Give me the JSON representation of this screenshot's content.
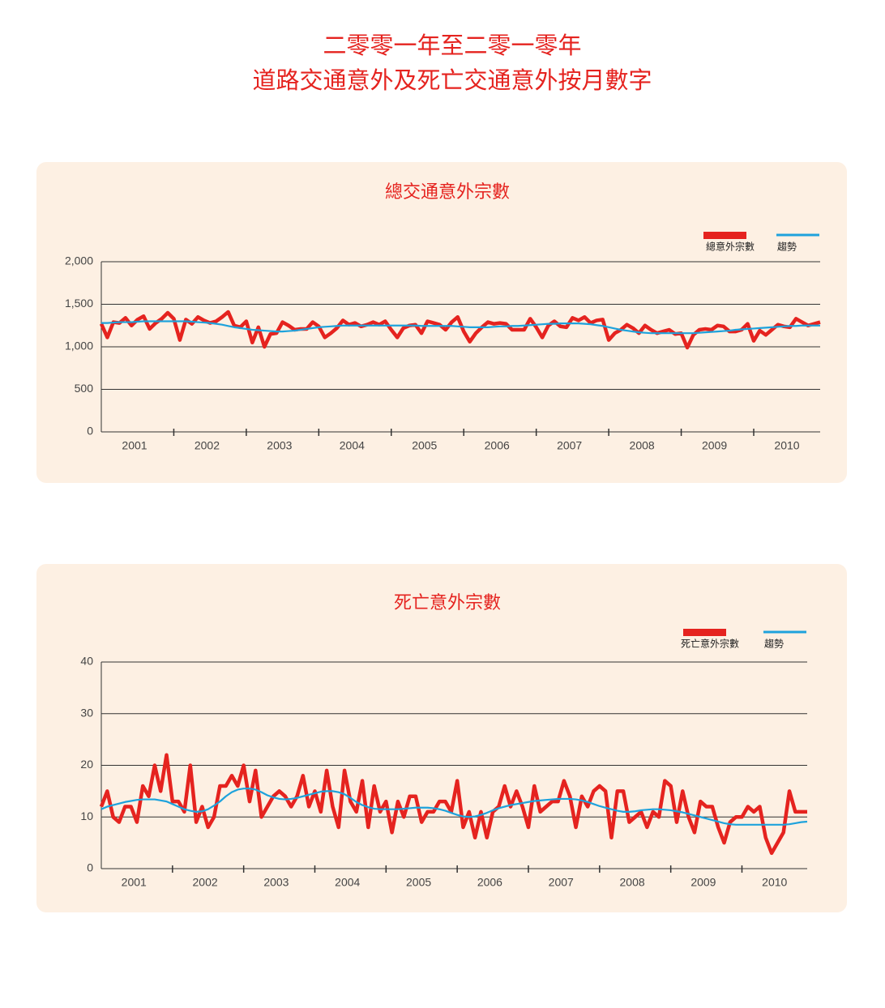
{
  "title_lines": [
    "二零零一年至二零一零年",
    "道路交通意外及死亡交通意外按月數字"
  ],
  "chart_data": [
    {
      "type": "line",
      "title": "總交通意外宗數",
      "legend": "top-right",
      "grid": true,
      "categories": [
        null,
        null,
        null,
        null,
        null,
        null,
        "2001",
        null,
        null,
        null,
        null,
        null,
        null,
        null,
        null,
        null,
        null,
        null,
        "2002",
        null,
        null,
        null,
        null,
        null,
        null,
        null,
        null,
        null,
        null,
        null,
        "2003",
        null,
        null,
        null,
        null,
        null,
        null,
        null,
        null,
        null,
        null,
        null,
        "2004",
        null,
        null,
        null,
        null,
        null,
        null,
        null,
        null,
        null,
        null,
        null,
        "2005",
        null,
        null,
        null,
        null,
        null,
        null,
        null,
        null,
        null,
        null,
        null,
        "2006",
        null,
        null,
        null,
        null,
        null,
        null,
        null,
        null,
        null,
        null,
        null,
        "2007",
        null,
        null,
        null,
        null,
        null,
        null,
        null,
        null,
        null,
        null,
        null,
        "2008",
        null,
        null,
        null,
        null,
        null,
        null,
        null,
        null,
        null,
        null,
        null,
        "2009",
        null,
        null,
        null,
        null,
        null,
        null,
        null,
        null,
        null,
        null,
        null,
        "2010",
        null,
        null,
        null,
        null,
        null
      ],
      "series": [
        {
          "name": "總意外宗數",
          "color": "#e5231f",
          "values": [
            1270,
            1110,
            1290,
            1280,
            1340,
            1250,
            1320,
            1360,
            1210,
            1280,
            1330,
            1400,
            1330,
            1080,
            1320,
            1270,
            1350,
            1310,
            1280,
            1300,
            1350,
            1410,
            1250,
            1230,
            1300,
            1050,
            1230,
            1000,
            1150,
            1160,
            1290,
            1250,
            1200,
            1210,
            1210,
            1290,
            1240,
            1110,
            1160,
            1220,
            1310,
            1260,
            1280,
            1240,
            1260,
            1290,
            1260,
            1300,
            1200,
            1110,
            1220,
            1250,
            1260,
            1160,
            1300,
            1280,
            1260,
            1200,
            1290,
            1350,
            1180,
            1060,
            1160,
            1230,
            1290,
            1270,
            1280,
            1270,
            1200,
            1200,
            1200,
            1330,
            1230,
            1110,
            1250,
            1300,
            1240,
            1230,
            1340,
            1310,
            1350,
            1280,
            1310,
            1320,
            1080,
            1160,
            1200,
            1260,
            1220,
            1160,
            1250,
            1200,
            1160,
            1180,
            1200,
            1150,
            1160,
            990,
            1140,
            1200,
            1210,
            1200,
            1250,
            1240,
            1180,
            1180,
            1200,
            1270,
            1070,
            1190,
            1140,
            1200,
            1260,
            1240,
            1230,
            1330,
            1290,
            1250,
            1270,
            1290
          ]
        },
        {
          "name": "趨勢",
          "color": "#1ea2dc",
          "values": [
            1280,
            1280,
            1285,
            1290,
            1290,
            1290,
            1295,
            1300,
            1300,
            1300,
            1300,
            1300,
            1300,
            1300,
            1300,
            1295,
            1290,
            1285,
            1280,
            1270,
            1260,
            1245,
            1230,
            1220,
            1210,
            1200,
            1195,
            1190,
            1185,
            1180,
            1180,
            1185,
            1190,
            1200,
            1210,
            1220,
            1230,
            1235,
            1240,
            1245,
            1250,
            1250,
            1250,
            1250,
            1250,
            1250,
            1250,
            1250,
            1250,
            1250,
            1250,
            1250,
            1250,
            1245,
            1245,
            1245,
            1245,
            1245,
            1245,
            1240,
            1235,
            1230,
            1230,
            1230,
            1230,
            1235,
            1240,
            1240,
            1245,
            1245,
            1250,
            1255,
            1260,
            1265,
            1270,
            1270,
            1275,
            1275,
            1275,
            1275,
            1270,
            1265,
            1255,
            1245,
            1230,
            1215,
            1200,
            1190,
            1180,
            1170,
            1165,
            1160,
            1160,
            1160,
            1160,
            1160,
            1160,
            1160,
            1160,
            1165,
            1170,
            1175,
            1180,
            1185,
            1190,
            1200,
            1205,
            1210,
            1215,
            1220,
            1225,
            1230,
            1235,
            1240,
            1245,
            1245,
            1250,
            1250,
            1250,
            1250
          ]
        }
      ],
      "ylim": [
        0,
        2000
      ],
      "yticks": [
        0,
        500,
        {
          "value": 1000,
          "label": "1,000"
        },
        {
          "value": 1500,
          "label": "1,500"
        },
        {
          "value": 2000,
          "label": "2,000"
        }
      ]
    },
    {
      "type": "line",
      "title": "死亡意外宗數",
      "legend": "top-right",
      "grid": true,
      "categories": [
        null,
        null,
        null,
        null,
        null,
        null,
        "2001",
        null,
        null,
        null,
        null,
        null,
        null,
        null,
        null,
        null,
        null,
        null,
        "2002",
        null,
        null,
        null,
        null,
        null,
        null,
        null,
        null,
        null,
        null,
        null,
        "2003",
        null,
        null,
        null,
        null,
        null,
        null,
        null,
        null,
        null,
        null,
        null,
        "2004",
        null,
        null,
        null,
        null,
        null,
        null,
        null,
        null,
        null,
        null,
        null,
        "2005",
        null,
        null,
        null,
        null,
        null,
        null,
        null,
        null,
        null,
        null,
        null,
        "2006",
        null,
        null,
        null,
        null,
        null,
        null,
        null,
        null,
        null,
        null,
        null,
        "2007",
        null,
        null,
        null,
        null,
        null,
        null,
        null,
        null,
        null,
        null,
        null,
        "2008",
        null,
        null,
        null,
        null,
        null,
        null,
        null,
        null,
        null,
        null,
        null,
        "2009",
        null,
        null,
        null,
        null,
        null,
        null,
        null,
        null,
        null,
        null,
        null,
        "2010",
        null,
        null,
        null,
        null,
        null
      ],
      "series": [
        {
          "name": "死亡意外宗數",
          "color": "#e5231f",
          "values": [
            12,
            15,
            10,
            9,
            12,
            12,
            9,
            16,
            14,
            20,
            15,
            22,
            13,
            13,
            11,
            20,
            9,
            12,
            8,
            10,
            16,
            16,
            18,
            16,
            20,
            13,
            19,
            10,
            12,
            14,
            15,
            14,
            12,
            14,
            18,
            12,
            15,
            11,
            19,
            12,
            8,
            19,
            13,
            11,
            17,
            8,
            16,
            11,
            13,
            7,
            13,
            10,
            14,
            14,
            9,
            11,
            11,
            13,
            13,
            11,
            17,
            8,
            11,
            6,
            11,
            6,
            11,
            12,
            16,
            12,
            15,
            12,
            8,
            16,
            11,
            12,
            13,
            13,
            17,
            14,
            8,
            14,
            12,
            15,
            16,
            15,
            6,
            15,
            15,
            9,
            10,
            11,
            8,
            11,
            10,
            17,
            16,
            9,
            15,
            10,
            7,
            13,
            12,
            12,
            8,
            5,
            9,
            10,
            10,
            12,
            11,
            12,
            6,
            3,
            5,
            7,
            15,
            11,
            11,
            11
          ]
        },
        {
          "name": "趨勢",
          "color": "#1ea2dc",
          "values": [
            11.5,
            12,
            12.3,
            12.6,
            12.9,
            13.1,
            13.3,
            13.4,
            13.4,
            13.4,
            13.2,
            13,
            12.5,
            12,
            11.5,
            11.2,
            11,
            11.1,
            11.5,
            12.2,
            13,
            14,
            14.8,
            15.3,
            15.5,
            15.5,
            15.3,
            14.8,
            14.2,
            13.8,
            13.5,
            13.4,
            13.5,
            13.7,
            14,
            14.3,
            14.6,
            14.9,
            15,
            15,
            14.8,
            14.4,
            13.7,
            12.9,
            12.3,
            11.9,
            11.6,
            11.5,
            11.5,
            11.5,
            11.5,
            11.6,
            11.7,
            11.8,
            11.8,
            11.8,
            11.7,
            11.5,
            11.2,
            10.8,
            10.4,
            10.1,
            10,
            10.1,
            10.4,
            10.8,
            11.3,
            11.7,
            12,
            12.3,
            12.5,
            12.7,
            12.9,
            13.1,
            13.2,
            13.3,
            13.4,
            13.5,
            13.5,
            13.5,
            13.4,
            13.2,
            12.9,
            12.5,
            12.1,
            11.8,
            11.5,
            11.2,
            11,
            11,
            11.1,
            11.3,
            11.4,
            11.5,
            11.5,
            11.4,
            11.3,
            11.1,
            10.9,
            10.6,
            10.3,
            10,
            9.7,
            9.4,
            9.1,
            8.8,
            8.6,
            8.5,
            8.5,
            8.5,
            8.5,
            8.5,
            8.5,
            8.5,
            8.5,
            8.5,
            8.6,
            8.8,
            9,
            9.1
          ]
        }
      ],
      "ylim": [
        0,
        40
      ],
      "yticks": [
        0,
        10,
        20,
        30,
        40
      ]
    }
  ]
}
